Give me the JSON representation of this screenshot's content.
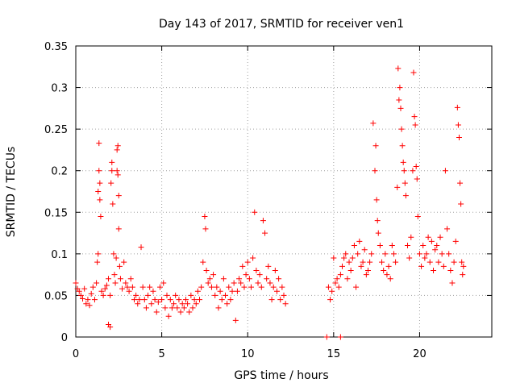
{
  "chart_data": {
    "type": "scatter",
    "title": "Day 143 of 2017, SRMTID for receiver ven1",
    "xlabel": "GPS time / hours",
    "ylabel": "SRMTID / TECUs",
    "xlim": [
      0,
      24.2
    ],
    "ylim": [
      0,
      0.35
    ],
    "xticks": [
      0,
      5,
      10,
      15,
      20
    ],
    "xtick_labels": [
      "0",
      "5",
      "10",
      "15",
      "20"
    ],
    "yticks": [
      0,
      0.05,
      0.1,
      0.15,
      0.2,
      0.25,
      0.3,
      0.35
    ],
    "ytick_labels": [
      "0",
      "0.05",
      "0.1",
      "0.15",
      "0.2",
      "0.25",
      "0.3",
      "0.35"
    ],
    "grid": true,
    "marker": "+",
    "color": "#ff0000",
    "series": [
      {
        "name": "SRMTID",
        "points": [
          [
            0.0,
            0.065
          ],
          [
            0.1,
            0.058
          ],
          [
            0.2,
            0.055
          ],
          [
            0.3,
            0.05
          ],
          [
            0.4,
            0.046
          ],
          [
            0.5,
            0.058
          ],
          [
            0.6,
            0.04
          ],
          [
            0.7,
            0.045
          ],
          [
            0.8,
            0.038
          ],
          [
            0.9,
            0.052
          ],
          [
            1.0,
            0.06
          ],
          [
            1.1,
            0.045
          ],
          [
            1.2,
            0.065
          ],
          [
            1.25,
            0.09
          ],
          [
            1.3,
            0.1
          ],
          [
            1.3,
            0.175
          ],
          [
            1.35,
            0.2
          ],
          [
            1.35,
            0.233
          ],
          [
            1.4,
            0.185
          ],
          [
            1.4,
            0.165
          ],
          [
            1.45,
            0.145
          ],
          [
            1.5,
            0.055
          ],
          [
            1.6,
            0.05
          ],
          [
            1.7,
            0.058
          ],
          [
            1.8,
            0.062
          ],
          [
            1.9,
            0.07
          ],
          [
            1.9,
            0.015
          ],
          [
            2.0,
            0.05
          ],
          [
            2.0,
            0.012
          ],
          [
            2.05,
            0.185
          ],
          [
            2.1,
            0.2
          ],
          [
            2.1,
            0.21
          ],
          [
            2.15,
            0.16
          ],
          [
            2.2,
            0.1
          ],
          [
            2.25,
            0.075
          ],
          [
            2.3,
            0.065
          ],
          [
            2.35,
            0.095
          ],
          [
            2.4,
            0.2
          ],
          [
            2.4,
            0.225
          ],
          [
            2.45,
            0.195
          ],
          [
            2.45,
            0.23
          ],
          [
            2.5,
            0.17
          ],
          [
            2.5,
            0.13
          ],
          [
            2.55,
            0.085
          ],
          [
            2.6,
            0.07
          ],
          [
            2.7,
            0.058
          ],
          [
            2.8,
            0.09
          ],
          [
            2.9,
            0.065
          ],
          [
            3.0,
            0.06
          ],
          [
            3.1,
            0.055
          ],
          [
            3.2,
            0.07
          ],
          [
            3.3,
            0.06
          ],
          [
            3.4,
            0.045
          ],
          [
            3.5,
            0.05
          ],
          [
            3.6,
            0.04
          ],
          [
            3.7,
            0.045
          ],
          [
            3.8,
            0.108
          ],
          [
            3.9,
            0.06
          ],
          [
            4.0,
            0.045
          ],
          [
            4.1,
            0.035
          ],
          [
            4.2,
            0.05
          ],
          [
            4.3,
            0.06
          ],
          [
            4.4,
            0.04
          ],
          [
            4.5,
            0.055
          ],
          [
            4.6,
            0.045
          ],
          [
            4.7,
            0.03
          ],
          [
            4.8,
            0.042
          ],
          [
            4.9,
            0.06
          ],
          [
            5.0,
            0.045
          ],
          [
            5.1,
            0.065
          ],
          [
            5.2,
            0.035
          ],
          [
            5.3,
            0.05
          ],
          [
            5.4,
            0.025
          ],
          [
            5.5,
            0.045
          ],
          [
            5.6,
            0.035
          ],
          [
            5.7,
            0.04
          ],
          [
            5.8,
            0.05
          ],
          [
            5.9,
            0.035
          ],
          [
            6.0,
            0.045
          ],
          [
            6.1,
            0.03
          ],
          [
            6.2,
            0.04
          ],
          [
            6.3,
            0.035
          ],
          [
            6.4,
            0.045
          ],
          [
            6.5,
            0.04
          ],
          [
            6.6,
            0.03
          ],
          [
            6.7,
            0.05
          ],
          [
            6.8,
            0.035
          ],
          [
            6.9,
            0.045
          ],
          [
            7.0,
            0.04
          ],
          [
            7.1,
            0.055
          ],
          [
            7.2,
            0.045
          ],
          [
            7.3,
            0.06
          ],
          [
            7.4,
            0.09
          ],
          [
            7.5,
            0.145
          ],
          [
            7.55,
            0.13
          ],
          [
            7.6,
            0.08
          ],
          [
            7.7,
            0.065
          ],
          [
            7.8,
            0.07
          ],
          [
            7.9,
            0.06
          ],
          [
            8.0,
            0.075
          ],
          [
            8.1,
            0.05
          ],
          [
            8.2,
            0.06
          ],
          [
            8.3,
            0.035
          ],
          [
            8.4,
            0.055
          ],
          [
            8.5,
            0.045
          ],
          [
            8.6,
            0.07
          ],
          [
            8.7,
            0.05
          ],
          [
            8.8,
            0.04
          ],
          [
            8.9,
            0.06
          ],
          [
            9.0,
            0.045
          ],
          [
            9.1,
            0.055
          ],
          [
            9.2,
            0.065
          ],
          [
            9.3,
            0.02
          ],
          [
            9.4,
            0.055
          ],
          [
            9.5,
            0.07
          ],
          [
            9.6,
            0.065
          ],
          [
            9.7,
            0.085
          ],
          [
            9.8,
            0.06
          ],
          [
            9.9,
            0.075
          ],
          [
            10.0,
            0.09
          ],
          [
            10.1,
            0.07
          ],
          [
            10.2,
            0.06
          ],
          [
            10.3,
            0.095
          ],
          [
            10.4,
            0.15
          ],
          [
            10.5,
            0.08
          ],
          [
            10.6,
            0.065
          ],
          [
            10.7,
            0.075
          ],
          [
            10.8,
            0.06
          ],
          [
            10.9,
            0.14
          ],
          [
            11.0,
            0.125
          ],
          [
            11.1,
            0.07
          ],
          [
            11.2,
            0.085
          ],
          [
            11.3,
            0.065
          ],
          [
            11.4,
            0.045
          ],
          [
            11.5,
            0.06
          ],
          [
            11.6,
            0.08
          ],
          [
            11.7,
            0.055
          ],
          [
            11.8,
            0.07
          ],
          [
            11.9,
            0.045
          ],
          [
            12.0,
            0.06
          ],
          [
            12.1,
            0.05
          ],
          [
            12.2,
            0.04
          ],
          [
            14.6,
            0.0
          ],
          [
            15.4,
            0.0
          ],
          [
            14.7,
            0.06
          ],
          [
            14.8,
            0.045
          ],
          [
            14.9,
            0.055
          ],
          [
            15.0,
            0.095
          ],
          [
            15.1,
            0.065
          ],
          [
            15.2,
            0.07
          ],
          [
            15.3,
            0.06
          ],
          [
            15.4,
            0.075
          ],
          [
            15.5,
            0.085
          ],
          [
            15.6,
            0.095
          ],
          [
            15.7,
            0.1
          ],
          [
            15.8,
            0.07
          ],
          [
            15.9,
            0.09
          ],
          [
            16.0,
            0.08
          ],
          [
            16.1,
            0.095
          ],
          [
            16.2,
            0.11
          ],
          [
            16.3,
            0.06
          ],
          [
            16.4,
            0.1
          ],
          [
            16.5,
            0.115
          ],
          [
            16.6,
            0.085
          ],
          [
            16.7,
            0.09
          ],
          [
            16.8,
            0.105
          ],
          [
            16.9,
            0.075
          ],
          [
            17.0,
            0.08
          ],
          [
            17.1,
            0.09
          ],
          [
            17.2,
            0.1
          ],
          [
            17.3,
            0.257
          ],
          [
            17.4,
            0.2
          ],
          [
            17.45,
            0.23
          ],
          [
            17.5,
            0.165
          ],
          [
            17.55,
            0.14
          ],
          [
            17.6,
            0.125
          ],
          [
            17.7,
            0.11
          ],
          [
            17.8,
            0.09
          ],
          [
            17.9,
            0.08
          ],
          [
            18.0,
            0.1
          ],
          [
            18.1,
            0.075
          ],
          [
            18.2,
            0.085
          ],
          [
            18.3,
            0.07
          ],
          [
            18.4,
            0.11
          ],
          [
            18.5,
            0.1
          ],
          [
            18.6,
            0.09
          ],
          [
            18.7,
            0.18
          ],
          [
            18.75,
            0.323
          ],
          [
            18.8,
            0.285
          ],
          [
            18.85,
            0.3
          ],
          [
            18.9,
            0.275
          ],
          [
            18.95,
            0.25
          ],
          [
            19.0,
            0.23
          ],
          [
            19.05,
            0.21
          ],
          [
            19.1,
            0.2
          ],
          [
            19.15,
            0.185
          ],
          [
            19.2,
            0.17
          ],
          [
            19.3,
            0.11
          ],
          [
            19.4,
            0.095
          ],
          [
            19.5,
            0.12
          ],
          [
            19.6,
            0.2
          ],
          [
            19.65,
            0.318
          ],
          [
            19.7,
            0.265
          ],
          [
            19.75,
            0.255
          ],
          [
            19.8,
            0.205
          ],
          [
            19.85,
            0.19
          ],
          [
            19.9,
            0.145
          ],
          [
            20.0,
            0.1
          ],
          [
            20.1,
            0.085
          ],
          [
            20.2,
            0.11
          ],
          [
            20.3,
            0.095
          ],
          [
            20.4,
            0.1
          ],
          [
            20.5,
            0.12
          ],
          [
            20.6,
            0.09
          ],
          [
            20.7,
            0.115
          ],
          [
            20.8,
            0.08
          ],
          [
            20.9,
            0.105
          ],
          [
            21.0,
            0.11
          ],
          [
            21.1,
            0.09
          ],
          [
            21.2,
            0.12
          ],
          [
            21.3,
            0.1
          ],
          [
            21.4,
            0.085
          ],
          [
            21.5,
            0.2
          ],
          [
            21.6,
            0.13
          ],
          [
            21.7,
            0.1
          ],
          [
            21.8,
            0.08
          ],
          [
            21.9,
            0.065
          ],
          [
            22.0,
            0.09
          ],
          [
            22.1,
            0.115
          ],
          [
            22.2,
            0.276
          ],
          [
            22.25,
            0.255
          ],
          [
            22.3,
            0.24
          ],
          [
            22.35,
            0.185
          ],
          [
            22.4,
            0.16
          ],
          [
            22.45,
            0.09
          ],
          [
            22.5,
            0.075
          ],
          [
            22.55,
            0.085
          ]
        ]
      }
    ]
  }
}
